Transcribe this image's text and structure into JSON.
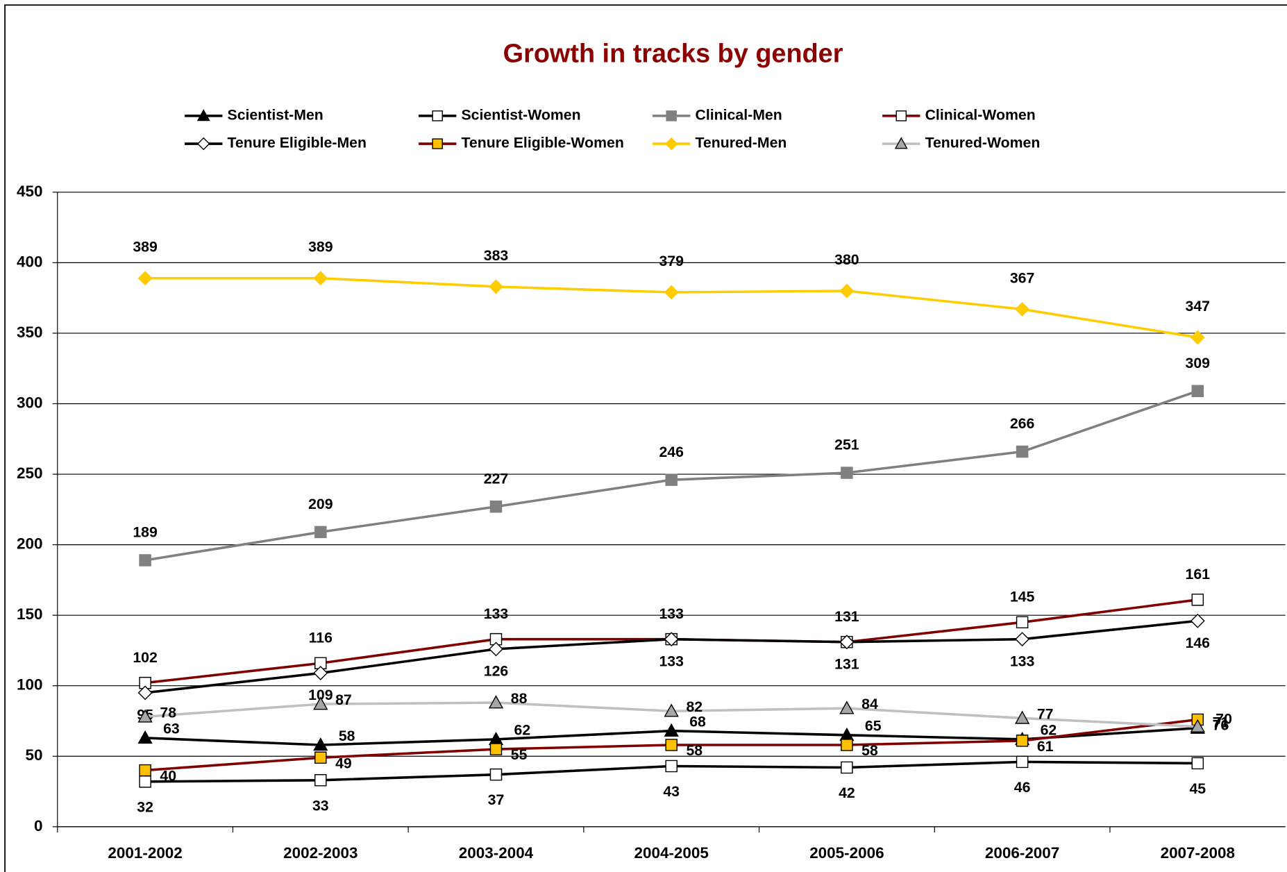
{
  "chart_data": {
    "type": "line",
    "title": "Growth in tracks by gender",
    "categories": [
      "2001-2002",
      "2002-2003",
      "2003-2004",
      "2004-2005",
      "2005-2006",
      "2006-2007",
      "2007-2008"
    ],
    "ylim": [
      0,
      450
    ],
    "yticks": [
      0,
      50,
      100,
      150,
      200,
      250,
      300,
      350,
      400,
      450
    ],
    "grid": true,
    "legend": "top",
    "series": [
      {
        "name": "Scientist-Men",
        "color": "#000000",
        "marker": "triangle",
        "marker_fill": "#000000",
        "values": [
          63,
          58,
          62,
          68,
          65,
          62,
          70
        ]
      },
      {
        "name": "Scientist-Women",
        "color": "#000000",
        "marker": "square",
        "marker_fill": "#ffffff",
        "values": [
          32,
          33,
          37,
          43,
          42,
          46,
          45
        ]
      },
      {
        "name": "Clinical-Men",
        "color": "#808080",
        "marker": "square",
        "marker_fill": "#808080",
        "values": [
          189,
          209,
          227,
          246,
          251,
          266,
          309
        ]
      },
      {
        "name": "Clinical-Women",
        "color": "#800000",
        "marker": "square",
        "marker_fill": "#ffffff",
        "values": [
          102,
          116,
          133,
          133,
          131,
          145,
          161
        ]
      },
      {
        "name": "Tenure Eligible-Men",
        "color": "#000000",
        "marker": "diamond",
        "marker_fill": "#ffffff",
        "values": [
          95,
          109,
          126,
          133,
          131,
          133,
          146
        ]
      },
      {
        "name": "Tenure Eligible-Women",
        "color": "#800000",
        "marker": "square",
        "marker_fill": "#ffc000",
        "values": [
          40,
          49,
          55,
          58,
          58,
          61,
          76
        ]
      },
      {
        "name": "Tenured-Men",
        "color": "#ffcc00",
        "marker": "diamond",
        "marker_fill": "#ffcc00",
        "values": [
          389,
          389,
          383,
          379,
          380,
          367,
          347
        ]
      },
      {
        "name": "Tenured-Women",
        "color": "#c0c0c0",
        "marker": "triangle",
        "marker_fill": "#a6a6a6",
        "values": [
          78,
          87,
          88,
          82,
          84,
          77,
          71
        ]
      }
    ]
  }
}
